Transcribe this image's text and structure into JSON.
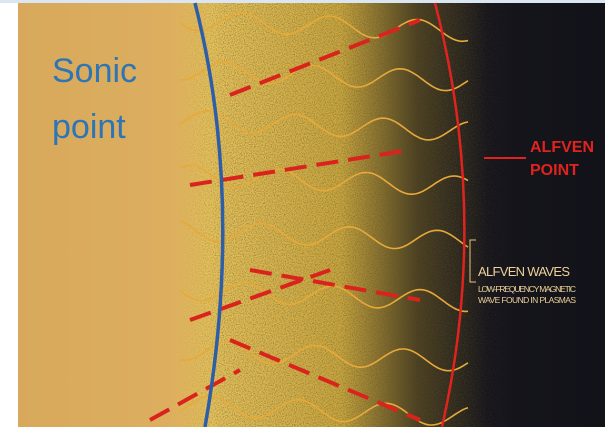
{
  "sonic_point": {
    "lines": [
      "Sonic",
      "point"
    ]
  },
  "alfven_point": {
    "lines": [
      "ALFVEN",
      "POINT"
    ]
  },
  "alfven_waves": {
    "title": "ALFVEN WAVES",
    "description": [
      "LOW-FREQUENCY MAGNETIC",
      "WAVE FOUND IN PLASMAS"
    ]
  }
}
